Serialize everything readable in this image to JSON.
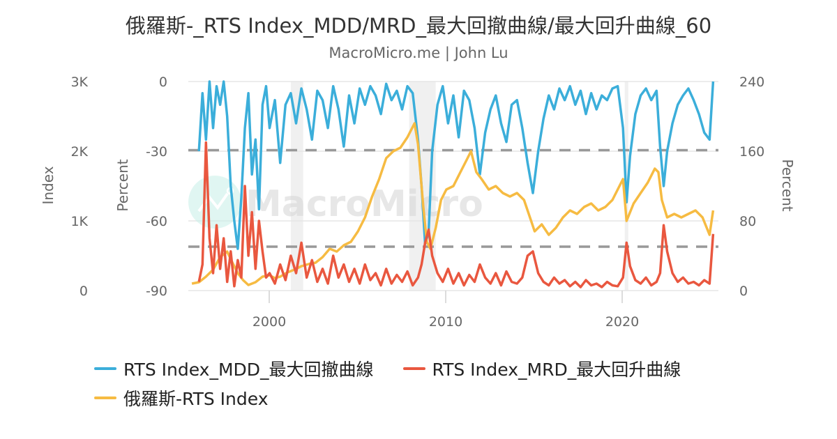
{
  "header": {
    "title": "俄羅斯-_RTS Index_MDD/MRD_最大回撤曲線/最大回升曲線_60",
    "subtitle": "MacroMicro.me | John Lu"
  },
  "watermark": {
    "text": "MacroMicro"
  },
  "axes": {
    "left_outer": {
      "title": "Index",
      "ticks": [
        "3K",
        "2K",
        "1K",
        "0"
      ]
    },
    "left_inner": {
      "title": "Percent",
      "ticks": [
        "0",
        "-30",
        "-60",
        "-90"
      ]
    },
    "right": {
      "title": "Percent",
      "ticks": [
        "240",
        "160",
        "80",
        "0"
      ]
    },
    "x": {
      "ticks": [
        "2000",
        "2010",
        "2020"
      ]
    }
  },
  "legend": {
    "items": [
      {
        "label": "RTS Index_MDD_最大回撤曲線",
        "color": "#3BAEDA"
      },
      {
        "label": "RTS Index_MRD_最大回升曲線",
        "color": "#E9573F"
      },
      {
        "label": "俄羅斯-RTS Index",
        "color": "#F6BB42"
      }
    ]
  },
  "colors": {
    "mdd": "#3BAEDA",
    "mrd": "#E9573F",
    "index": "#F6BB42",
    "grid": "#E6E6E6",
    "dashed": "#999999",
    "recession": "#F0F0F0"
  },
  "chart_data": {
    "type": "line",
    "title": "俄羅斯-_RTS Index_MDD/MRD_最大回撤曲線/最大回升曲線_60",
    "subtitle": "MacroMicro.me | John Lu",
    "x_range": [
      1995.5,
      2025.3
    ],
    "x_ticks": [
      2000,
      2010,
      2020
    ],
    "y_axes": [
      {
        "id": "index",
        "title": "Index",
        "side": "left-outer",
        "range": [
          0,
          3000
        ],
        "ticks": [
          0,
          1000,
          2000,
          3000
        ]
      },
      {
        "id": "mdd",
        "title": "Percent",
        "side": "left-inner",
        "range": [
          -90,
          0
        ],
        "ticks": [
          -90,
          -60,
          -30,
          0
        ]
      },
      {
        "id": "mrd",
        "title": "Percent",
        "side": "right",
        "range": [
          0,
          240
        ],
        "ticks": [
          0,
          80,
          160,
          240
        ]
      }
    ],
    "reference_lines": [
      {
        "axis": "mdd",
        "value": -30,
        "style": "dashed"
      },
      {
        "axis": "mrd",
        "value": 50,
        "style": "dashed"
      }
    ],
    "recession_bands": [
      [
        2001.2,
        2001.9
      ],
      [
        2007.9,
        2009.4
      ],
      [
        2020.1,
        2020.3
      ]
    ],
    "legend_position": "bottom",
    "grid": true,
    "series": [
      {
        "name": "RTS Index_MDD_最大回撤曲線",
        "axis": "mdd",
        "color": "#3BAEDA",
        "x": [
          1996.0,
          1996.2,
          1996.4,
          1996.6,
          1996.8,
          1997.0,
          1997.2,
          1997.4,
          1997.6,
          1997.8,
          1998.0,
          1998.2,
          1998.4,
          1998.6,
          1998.8,
          1999.0,
          1999.2,
          1999.4,
          1999.6,
          1999.8,
          2000.0,
          2000.3,
          2000.6,
          2000.9,
          2001.2,
          2001.5,
          2001.8,
          2002.1,
          2002.4,
          2002.7,
          2003.0,
          2003.3,
          2003.6,
          2003.9,
          2004.2,
          2004.5,
          2004.8,
          2005.1,
          2005.4,
          2005.7,
          2006.0,
          2006.3,
          2006.6,
          2006.9,
          2007.2,
          2007.5,
          2007.8,
          2008.1,
          2008.4,
          2008.6,
          2008.8,
          2009.0,
          2009.2,
          2009.5,
          2009.8,
          2010.1,
          2010.4,
          2010.7,
          2011.0,
          2011.3,
          2011.6,
          2011.9,
          2012.2,
          2012.5,
          2012.8,
          2013.1,
          2013.4,
          2013.7,
          2014.0,
          2014.3,
          2014.6,
          2014.9,
          2015.2,
          2015.5,
          2015.8,
          2016.1,
          2016.4,
          2016.7,
          2017.0,
          2017.3,
          2017.6,
          2017.9,
          2018.2,
          2018.5,
          2018.8,
          2019.1,
          2019.4,
          2019.7,
          2020.0,
          2020.2,
          2020.4,
          2020.7,
          2021.0,
          2021.3,
          2021.6,
          2021.9,
          2022.1,
          2022.3,
          2022.5,
          2022.8,
          2023.1,
          2023.4,
          2023.7,
          2024.0,
          2024.3,
          2024.6,
          2024.9,
          2025.1
        ],
        "values": [
          -30,
          -5,
          -25,
          0,
          -20,
          -2,
          -10,
          0,
          -15,
          -45,
          -60,
          -72,
          -50,
          -20,
          -5,
          -40,
          -25,
          -55,
          -10,
          -2,
          -20,
          -8,
          -35,
          -10,
          -5,
          -18,
          -3,
          -12,
          -25,
          -4,
          -8,
          -20,
          -2,
          -12,
          -28,
          -6,
          -18,
          -3,
          -10,
          -2,
          -6,
          -14,
          -1,
          -8,
          -4,
          -12,
          -2,
          -5,
          -25,
          -45,
          -70,
          -65,
          -30,
          -10,
          -2,
          -18,
          -6,
          -24,
          -4,
          -8,
          -20,
          -40,
          -22,
          -12,
          -6,
          -18,
          -26,
          -10,
          -8,
          -20,
          -35,
          -48,
          -30,
          -16,
          -6,
          -12,
          -3,
          -8,
          -2,
          -10,
          -4,
          -14,
          -5,
          -12,
          -6,
          -8,
          -3,
          -2,
          -20,
          -52,
          -32,
          -14,
          -6,
          -3,
          -8,
          -4,
          -28,
          -45,
          -30,
          -18,
          -10,
          -6,
          -3,
          -8,
          -14,
          -22,
          -25,
          0
        ]
      },
      {
        "name": "RTS Index_MRD_最大回升曲線",
        "axis": "mrd",
        "color": "#E9573F",
        "x": [
          1996.0,
          1996.2,
          1996.4,
          1996.6,
          1996.8,
          1997.0,
          1997.2,
          1997.4,
          1997.6,
          1997.8,
          1998.0,
          1998.2,
          1998.4,
          1998.6,
          1998.8,
          1999.0,
          1999.2,
          1999.4,
          1999.6,
          1999.8,
          2000.0,
          2000.3,
          2000.6,
          2000.9,
          2001.2,
          2001.5,
          2001.8,
          2002.1,
          2002.4,
          2002.7,
          2003.0,
          2003.3,
          2003.6,
          2003.9,
          2004.2,
          2004.5,
          2004.8,
          2005.1,
          2005.4,
          2005.7,
          2006.0,
          2006.3,
          2006.6,
          2006.9,
          2007.2,
          2007.5,
          2007.8,
          2008.1,
          2008.4,
          2008.6,
          2008.8,
          2009.0,
          2009.2,
          2009.5,
          2009.8,
          2010.1,
          2010.4,
          2010.7,
          2011.0,
          2011.3,
          2011.6,
          2011.9,
          2012.2,
          2012.5,
          2012.8,
          2013.1,
          2013.4,
          2013.7,
          2014.0,
          2014.3,
          2014.6,
          2014.9,
          2015.2,
          2015.5,
          2015.8,
          2016.1,
          2016.4,
          2016.7,
          2017.0,
          2017.3,
          2017.6,
          2017.9,
          2018.2,
          2018.5,
          2018.8,
          2019.1,
          2019.4,
          2019.7,
          2020.0,
          2020.2,
          2020.4,
          2020.7,
          2021.0,
          2021.3,
          2021.6,
          2021.9,
          2022.1,
          2022.3,
          2022.5,
          2022.8,
          2023.1,
          2023.4,
          2023.7,
          2024.0,
          2024.3,
          2024.6,
          2024.9,
          2025.1
        ],
        "values": [
          10,
          30,
          170,
          60,
          20,
          75,
          25,
          60,
          10,
          45,
          5,
          35,
          15,
          120,
          40,
          90,
          25,
          80,
          45,
          15,
          20,
          8,
          30,
          12,
          40,
          20,
          55,
          15,
          35,
          10,
          25,
          8,
          40,
          15,
          30,
          10,
          25,
          8,
          30,
          12,
          20,
          6,
          25,
          8,
          18,
          10,
          22,
          6,
          15,
          30,
          55,
          70,
          40,
          20,
          10,
          25,
          8,
          20,
          6,
          18,
          10,
          30,
          15,
          8,
          20,
          6,
          22,
          10,
          8,
          15,
          40,
          45,
          20,
          10,
          6,
          15,
          8,
          12,
          5,
          10,
          4,
          12,
          6,
          8,
          4,
          10,
          6,
          5,
          15,
          55,
          28,
          12,
          8,
          15,
          6,
          10,
          20,
          75,
          45,
          20,
          10,
          15,
          8,
          10,
          6,
          12,
          8,
          65
        ]
      },
      {
        "name": "俄羅斯-RTS Index",
        "axis": "index",
        "color": "#F6BB42",
        "x": [
          1995.6,
          1996.0,
          1996.4,
          1996.8,
          1997.2,
          1997.6,
          1997.9,
          1998.2,
          1998.5,
          1998.8,
          1999.2,
          1999.6,
          2000.0,
          2000.3,
          2000.6,
          2001.0,
          2001.4,
          2001.8,
          2002.2,
          2002.6,
          2003.0,
          2003.4,
          2003.8,
          2004.2,
          2004.6,
          2005.0,
          2005.4,
          2005.8,
          2006.2,
          2006.6,
          2007.0,
          2007.4,
          2007.8,
          2008.2,
          2008.4,
          2008.7,
          2008.9,
          2009.1,
          2009.4,
          2009.7,
          2010.0,
          2010.4,
          2010.8,
          2011.2,
          2011.4,
          2011.7,
          2012.0,
          2012.4,
          2012.8,
          2013.2,
          2013.6,
          2014.0,
          2014.4,
          2014.8,
          2015.0,
          2015.4,
          2015.8,
          2016.2,
          2016.6,
          2017.0,
          2017.4,
          2017.8,
          2018.2,
          2018.6,
          2019.0,
          2019.4,
          2019.8,
          2020.0,
          2020.2,
          2020.6,
          2021.0,
          2021.4,
          2021.8,
          2022.0,
          2022.2,
          2022.5,
          2022.9,
          2023.3,
          2023.7,
          2024.1,
          2024.5,
          2024.9,
          2025.1
        ],
        "values": [
          100,
          120,
          200,
          300,
          480,
          560,
          400,
          250,
          150,
          80,
          120,
          200,
          220,
          180,
          200,
          260,
          300,
          350,
          380,
          400,
          480,
          600,
          560,
          650,
          700,
          850,
          1050,
          1350,
          1600,
          1900,
          2000,
          2050,
          2200,
          2400,
          2100,
          1200,
          700,
          600,
          900,
          1300,
          1450,
          1500,
          1700,
          1900,
          2000,
          1700,
          1600,
          1450,
          1500,
          1400,
          1350,
          1400,
          1300,
          1000,
          850,
          950,
          800,
          900,
          1050,
          1150,
          1100,
          1200,
          1250,
          1150,
          1200,
          1300,
          1500,
          1600,
          1000,
          1250,
          1400,
          1550,
          1750,
          1700,
          1300,
          1050,
          1100,
          1050,
          1100,
          1150,
          1050,
          800,
          1150
        ]
      }
    ]
  }
}
